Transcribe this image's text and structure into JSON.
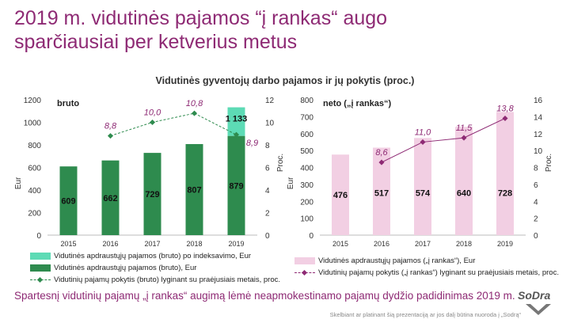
{
  "slide": {
    "title_line1": "2019 m. vidutinės pajamos “į rankas“ augo",
    "title_line2": "sparčiausiai per ketverius metus",
    "subtitle": "Vidutinės gyventojų darbo pajamos ir jų pokytis (proc.)",
    "footer": "Spartesnį vidutinių pajamų „į rankas“ augimą lėmė neapmokestinamo pajamų dydžio padidinimas 2019 m.",
    "note": "Skelbiant ar platinant šią prezentaciją ar jos dalį būtina nuoroda į „Sodrą“",
    "logo_text": "SoDra"
  },
  "colors": {
    "title": "#8e2a74",
    "gross_bar": "#2e8b4e",
    "gross_index_bar": "#5ddbb5",
    "gross_line": "#2e8b4e",
    "net_bar": "#f2cfe3",
    "net_line": "#8e2a74",
    "pct_label": "#8e2a74"
  },
  "chart_data": [
    {
      "type": "bar",
      "panel_label": "bruto",
      "categories": [
        "2015",
        "2016",
        "2017",
        "2018",
        "2019"
      ],
      "ylabel": "Eur",
      "y2label": "Proc.",
      "ylim": [
        0,
        1200
      ],
      "yticks": [
        0,
        200,
        400,
        600,
        800,
        1000,
        1200
      ],
      "y2lim": [
        0,
        12
      ],
      "y2ticks": [
        0,
        2,
        4,
        6,
        8,
        10,
        12
      ],
      "series": [
        {
          "name": "Vidutinės apdraustųjų pajamos (bruto), Eur",
          "kind": "bar",
          "values": [
            609,
            662,
            729,
            807,
            879
          ],
          "labels": [
            "609",
            "662",
            "729",
            "807",
            "879"
          ]
        },
        {
          "name": "Vidutinės apdraustųjų pajamos (bruto) po indeksavimo, Eur",
          "kind": "bar-stack-total",
          "values": [
            null,
            null,
            null,
            null,
            1133
          ],
          "labels": [
            "",
            "",
            "",
            "",
            "1 133"
          ]
        },
        {
          "name": "Vidutinių pajamų pokytis (bruto) lyginant su praėjusiais metais, proc.",
          "kind": "line",
          "axis": "y2",
          "values": [
            null,
            8.8,
            10.0,
            10.8,
            8.9
          ],
          "labels": [
            "",
            "8,8",
            "10,0",
            "10,8",
            "8,9"
          ]
        }
      ],
      "grid": false,
      "legend": "bottom"
    },
    {
      "type": "bar",
      "panel_label": "neto („į rankas“)",
      "categories": [
        "2015",
        "2016",
        "2017",
        "2018",
        "2019"
      ],
      "ylabel": "Eur",
      "y2label": "Proc.",
      "ylim": [
        0,
        800
      ],
      "yticks": [
        0,
        100,
        200,
        300,
        400,
        500,
        600,
        700,
        800
      ],
      "y2lim": [
        0,
        16
      ],
      "y2ticks": [
        0,
        2,
        4,
        6,
        8,
        10,
        12,
        14,
        16
      ],
      "series": [
        {
          "name": "Vidutinės apdraustųjų pajamos („į rankas“), Eur",
          "kind": "bar",
          "values": [
            476,
            517,
            574,
            640,
            728
          ],
          "labels": [
            "476",
            "517",
            "574",
            "640",
            "728"
          ]
        },
        {
          "name": "Vidutinių pajamų pokytis („į rankas“) lyginant su praėjusiais metais, proc.",
          "kind": "line",
          "axis": "y2",
          "values": [
            null,
            8.6,
            11.0,
            11.5,
            13.8
          ],
          "labels": [
            "",
            "8,6",
            "11,0",
            "11,5",
            "13,8"
          ]
        }
      ],
      "grid": false,
      "legend": "bottom"
    }
  ]
}
